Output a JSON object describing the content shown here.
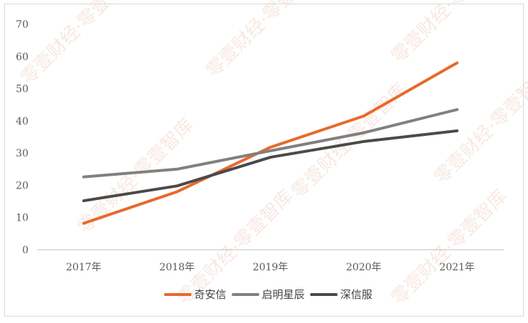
{
  "watermark": "零壹财经·零壹智库",
  "colors": {
    "series": [
      "#e8692a",
      "#808080",
      "#4a4a4a"
    ],
    "axis": "#bfbfbf",
    "text": "#595959"
  },
  "chart_data": {
    "type": "line",
    "title": "",
    "xlabel": "",
    "ylabel": "",
    "categories": [
      "2017年",
      "2018年",
      "2019年",
      "2020年",
      "2021年"
    ],
    "ylim": [
      0,
      70
    ],
    "yticks": [
      0,
      10,
      20,
      30,
      40,
      50,
      60,
      70
    ],
    "grid": false,
    "legend": "bottom",
    "series": [
      {
        "name": "奇安信",
        "values": [
          8.2,
          18.0,
          31.8,
          41.5,
          58.0
        ]
      },
      {
        "name": "启明星辰",
        "values": [
          22.6,
          25.0,
          30.7,
          36.3,
          43.5
        ]
      },
      {
        "name": "深信服",
        "values": [
          15.2,
          19.8,
          28.7,
          33.6,
          36.9
        ]
      }
    ]
  }
}
